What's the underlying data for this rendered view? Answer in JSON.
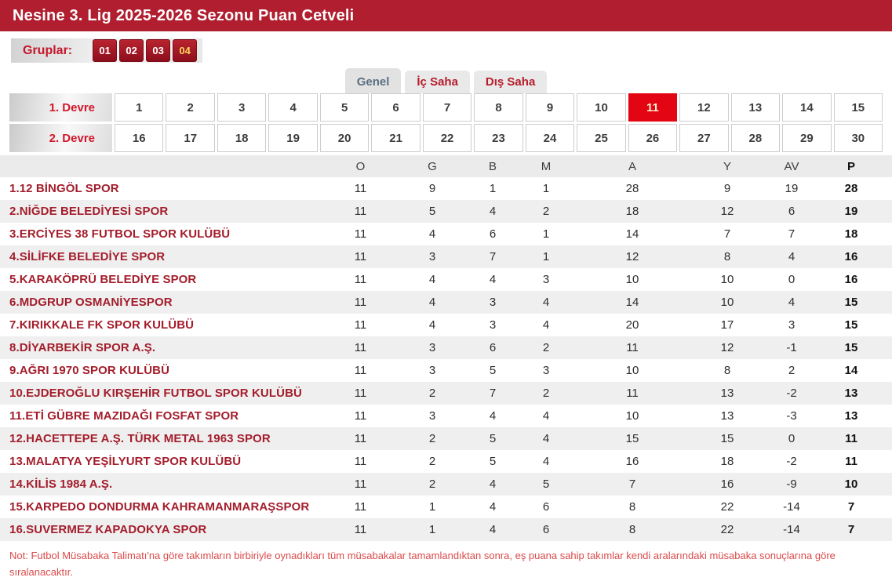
{
  "header": {
    "title": "Nesine 3. Lig 2025-2026 Sezonu Puan Cetveli"
  },
  "groups": {
    "label": "Gruplar:",
    "items": [
      {
        "label": "01",
        "selected": false
      },
      {
        "label": "02",
        "selected": false
      },
      {
        "label": "03",
        "selected": false
      },
      {
        "label": "04",
        "selected": true
      }
    ]
  },
  "tabs": [
    {
      "label": "Genel",
      "active": true
    },
    {
      "label": "İç Saha",
      "active": false
    },
    {
      "label": "Dış Saha",
      "active": false
    }
  ],
  "week_selector": {
    "selected_week": 11,
    "rounds": [
      {
        "label": "1. Devre",
        "weeks": [
          1,
          2,
          3,
          4,
          5,
          6,
          7,
          8,
          9,
          10,
          11,
          12,
          13,
          14,
          15
        ]
      },
      {
        "label": "2. Devre",
        "weeks": [
          16,
          17,
          18,
          19,
          20,
          21,
          22,
          23,
          24,
          25,
          26,
          27,
          28,
          29,
          30
        ]
      }
    ]
  },
  "standings": {
    "columns": [
      "O",
      "G",
      "B",
      "M",
      "A",
      "Y",
      "AV",
      "P"
    ],
    "rows": [
      {
        "team": "1.12 BİNGÖL SPOR",
        "values": [
          11,
          9,
          1,
          1,
          28,
          9,
          19,
          28
        ]
      },
      {
        "team": "2.NİĞDE BELEDİYESİ SPOR",
        "values": [
          11,
          5,
          4,
          2,
          18,
          12,
          6,
          19
        ]
      },
      {
        "team": "3.ERCİYES 38 FUTBOL SPOR KULÜBÜ",
        "values": [
          11,
          4,
          6,
          1,
          14,
          7,
          7,
          18
        ]
      },
      {
        "team": "4.SİLİFKE BELEDİYE SPOR",
        "values": [
          11,
          3,
          7,
          1,
          12,
          8,
          4,
          16
        ]
      },
      {
        "team": "5.KARAKÖPRÜ BELEDİYE SPOR",
        "values": [
          11,
          4,
          4,
          3,
          10,
          10,
          0,
          16
        ]
      },
      {
        "team": "6.MDGRUP OSMANİYESPOR",
        "values": [
          11,
          4,
          3,
          4,
          14,
          10,
          4,
          15
        ]
      },
      {
        "team": "7.KIRIKKALE FK SPOR KULÜBÜ",
        "values": [
          11,
          4,
          3,
          4,
          20,
          17,
          3,
          15
        ]
      },
      {
        "team": "8.DİYARBEKİR SPOR A.Ş.",
        "values": [
          11,
          3,
          6,
          2,
          11,
          12,
          -1,
          15
        ]
      },
      {
        "team": "9.AĞRI 1970 SPOR KULÜBÜ",
        "values": [
          11,
          3,
          5,
          3,
          10,
          8,
          2,
          14
        ]
      },
      {
        "team": "10.EJDEROĞLU KIRŞEHİR FUTBOL SPOR KULÜBÜ",
        "values": [
          11,
          2,
          7,
          2,
          11,
          13,
          -2,
          13
        ]
      },
      {
        "team": "11.ETİ GÜBRE MAZIDAĞI FOSFAT SPOR",
        "values": [
          11,
          3,
          4,
          4,
          10,
          13,
          -3,
          13
        ]
      },
      {
        "team": "12.HACETTEPE A.Ş. TÜRK METAL 1963 SPOR",
        "values": [
          11,
          2,
          5,
          4,
          15,
          15,
          0,
          11
        ]
      },
      {
        "team": "13.MALATYA YEŞİLYURT SPOR KULÜBÜ",
        "values": [
          11,
          2,
          5,
          4,
          16,
          18,
          -2,
          11
        ]
      },
      {
        "team": "14.KİLİS 1984 A.Ş.",
        "values": [
          11,
          2,
          4,
          5,
          7,
          16,
          -9,
          10
        ]
      },
      {
        "team": "15.KARPEDO DONDURMA KAHRAMANMARAŞSPOR",
        "values": [
          11,
          1,
          4,
          6,
          8,
          22,
          -14,
          7
        ]
      },
      {
        "team": "16.SUVERMEZ KAPADOKYA SPOR",
        "values": [
          11,
          1,
          4,
          6,
          8,
          22,
          -14,
          7
        ]
      }
    ]
  },
  "note": "Not: Futbol Müsabaka Talimatı'na göre takımların birbiriyle oynadıkları tüm müsabakalar tamamlandıktan sonra, eş puana sahip takımlar kendi aralarındaki müsabaka sonuçlarına göre sıralanacaktır.",
  "colors": {
    "titlebar_red": "#b01e2f",
    "selected_week_red": "#e30513",
    "team_name_red": "#a31d2b",
    "group_button_red": "#9d1120",
    "selected_group_text": "#ffd75e",
    "note_red": "#db4a4a"
  }
}
